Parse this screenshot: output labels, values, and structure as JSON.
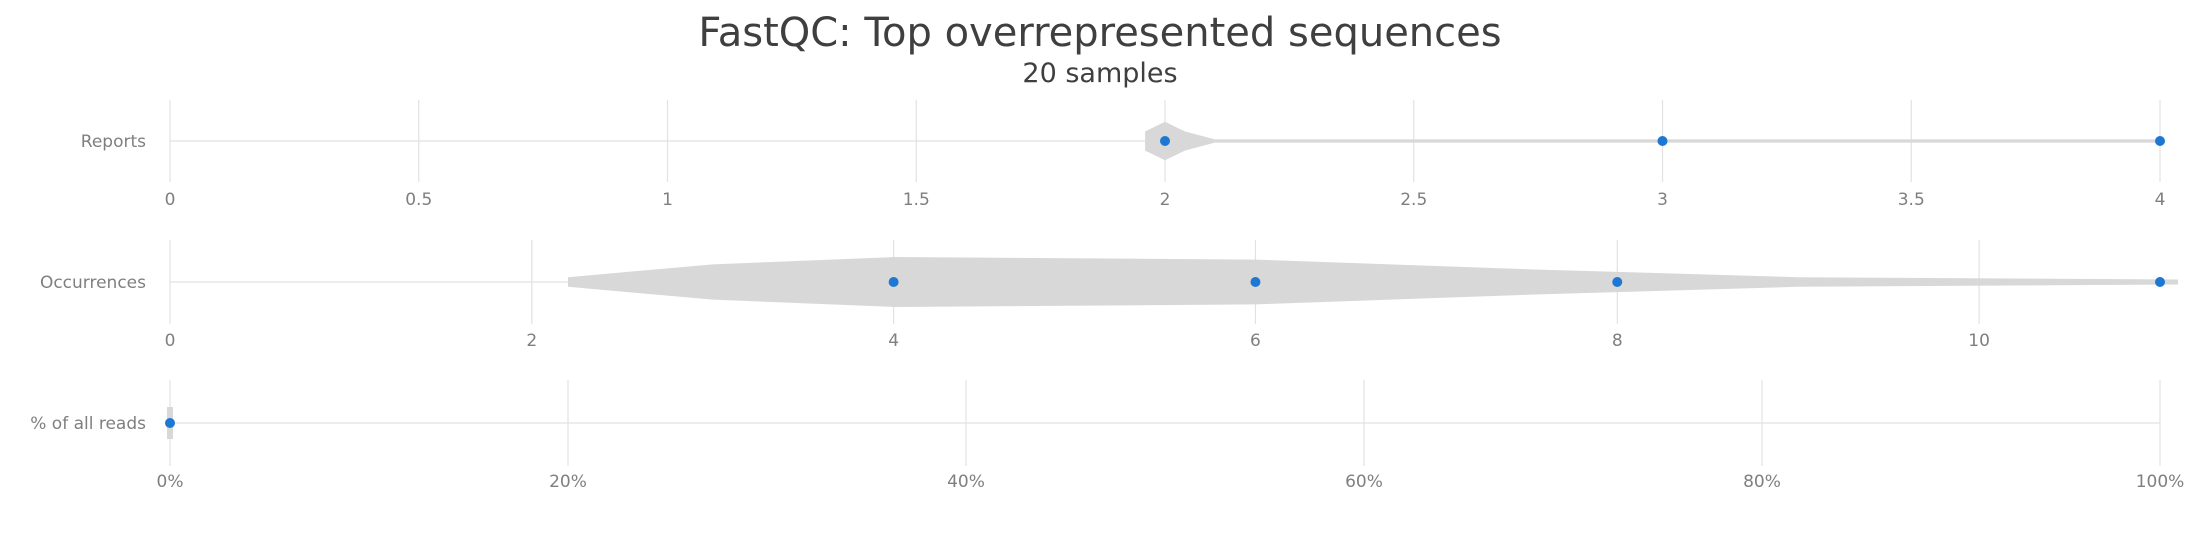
{
  "chart_data": {
    "type": "violin",
    "title": "FastQC: Top overrepresented sequences",
    "subtitle": "20 samples",
    "grid": true,
    "point_color": "#1f77d4",
    "violin_color": "#d8d8d8",
    "metrics": [
      {
        "name": "Reports",
        "xlim": [
          0,
          4
        ],
        "ticks": [
          0,
          0.5,
          1,
          1.5,
          2,
          2.5,
          3,
          3.5,
          4
        ],
        "tick_labels": [
          "0",
          "0.5",
          "1",
          "1.5",
          "2",
          "2.5",
          "3",
          "3.5",
          "4"
        ],
        "points": [
          2,
          3,
          4
        ],
        "density": [
          [
            2.0,
            0.6
          ],
          [
            1.96,
            0.3
          ],
          [
            2.04,
            0.3
          ],
          [
            2.1,
            0.05
          ],
          [
            4.0,
            0.05
          ]
        ]
      },
      {
        "name": "Occurrences",
        "xlim": [
          0,
          11
        ],
        "ticks": [
          0,
          2,
          4,
          6,
          8,
          10
        ],
        "tick_labels": [
          "0",
          "2",
          "4",
          "6",
          "8",
          "10"
        ],
        "points": [
          4,
          6,
          8,
          11
        ],
        "density": [
          [
            2.2,
            0.15
          ],
          [
            3.0,
            0.55
          ],
          [
            4.0,
            0.78
          ],
          [
            6.0,
            0.7
          ],
          [
            7.5,
            0.4
          ],
          [
            9.0,
            0.15
          ],
          [
            11.1,
            0.08
          ]
        ]
      },
      {
        "name": "% of all reads",
        "xlim": [
          0,
          100
        ],
        "ticks": [
          0,
          20,
          40,
          60,
          80,
          100
        ],
        "tick_labels": [
          "0%",
          "20%",
          "40%",
          "60%",
          "80%",
          "100%"
        ],
        "points": [
          0
        ],
        "density": [
          [
            0,
            0.5
          ]
        ]
      }
    ]
  }
}
